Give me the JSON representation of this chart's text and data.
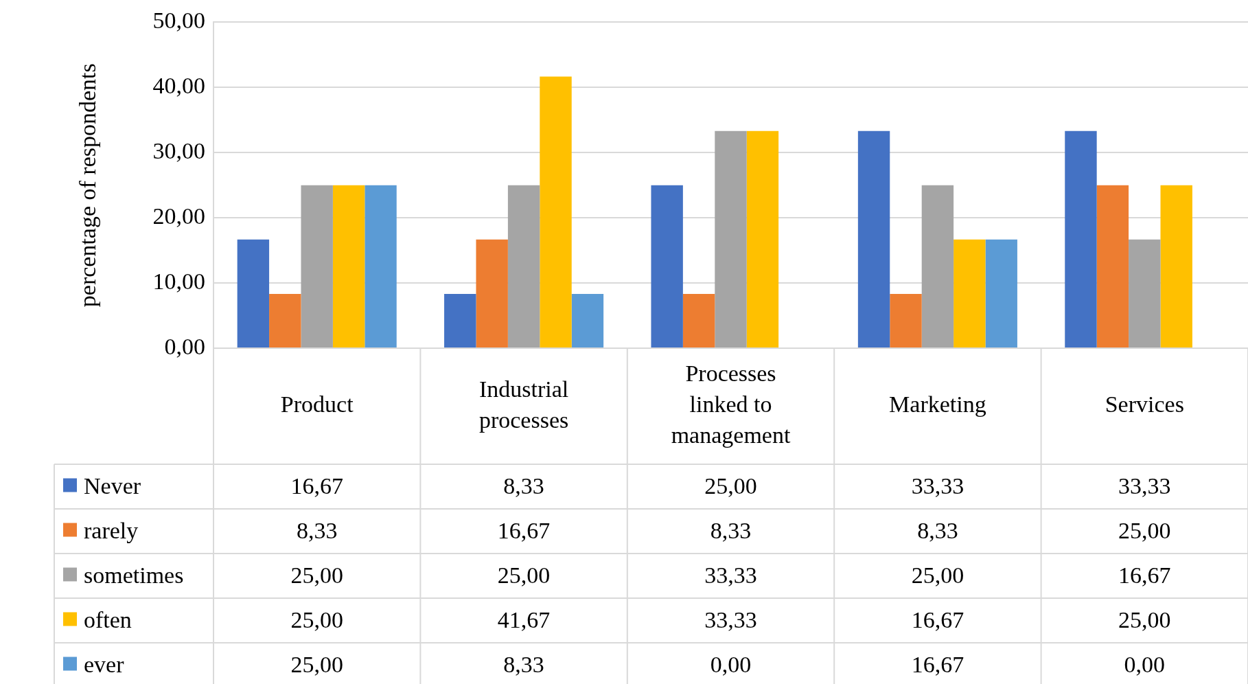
{
  "chart_data": {
    "type": "bar",
    "ylabel": "percentage of respondents",
    "categories": [
      "Product",
      "Industrial processes",
      "Processes linked to management",
      "Marketing",
      "Services"
    ],
    "series": [
      {
        "name": "Never",
        "color": "#4472c4",
        "values": [
          16.67,
          8.33,
          25.0,
          33.33,
          33.33
        ],
        "value_labels": [
          "16,67",
          "8,33",
          "25,00",
          "33,33",
          "33,33"
        ]
      },
      {
        "name": "rarely",
        "color": "#ed7d31",
        "values": [
          8.33,
          16.67,
          8.33,
          8.33,
          25.0
        ],
        "value_labels": [
          "8,33",
          "16,67",
          "8,33",
          "8,33",
          "25,00"
        ]
      },
      {
        "name": "sometimes",
        "color": "#a5a5a5",
        "values": [
          25.0,
          25.0,
          33.33,
          25.0,
          16.67
        ],
        "value_labels": [
          "25,00",
          "25,00",
          "33,33",
          "25,00",
          "16,67"
        ]
      },
      {
        "name": "often",
        "color": "#ffc000",
        "values": [
          25.0,
          41.67,
          33.33,
          16.67,
          25.0
        ],
        "value_labels": [
          "25,00",
          "41,67",
          "33,33",
          "16,67",
          "25,00"
        ]
      },
      {
        "name": "ever",
        "color": "#5b9bd5",
        "values": [
          25.0,
          8.33,
          0.0,
          16.67,
          0.0
        ],
        "value_labels": [
          "25,00",
          "8,33",
          "0,00",
          "16,67",
          "0,00"
        ]
      }
    ],
    "ylim": [
      0,
      50
    ],
    "yticks": [
      {
        "value": 0,
        "label": "0,00"
      },
      {
        "value": 10,
        "label": "10,00"
      },
      {
        "value": 20,
        "label": "20,00"
      },
      {
        "value": 30,
        "label": "30,00"
      },
      {
        "value": 40,
        "label": "40,00"
      },
      {
        "value": 50,
        "label": "50,00"
      }
    ],
    "grid": "y",
    "legend": "bottom"
  }
}
